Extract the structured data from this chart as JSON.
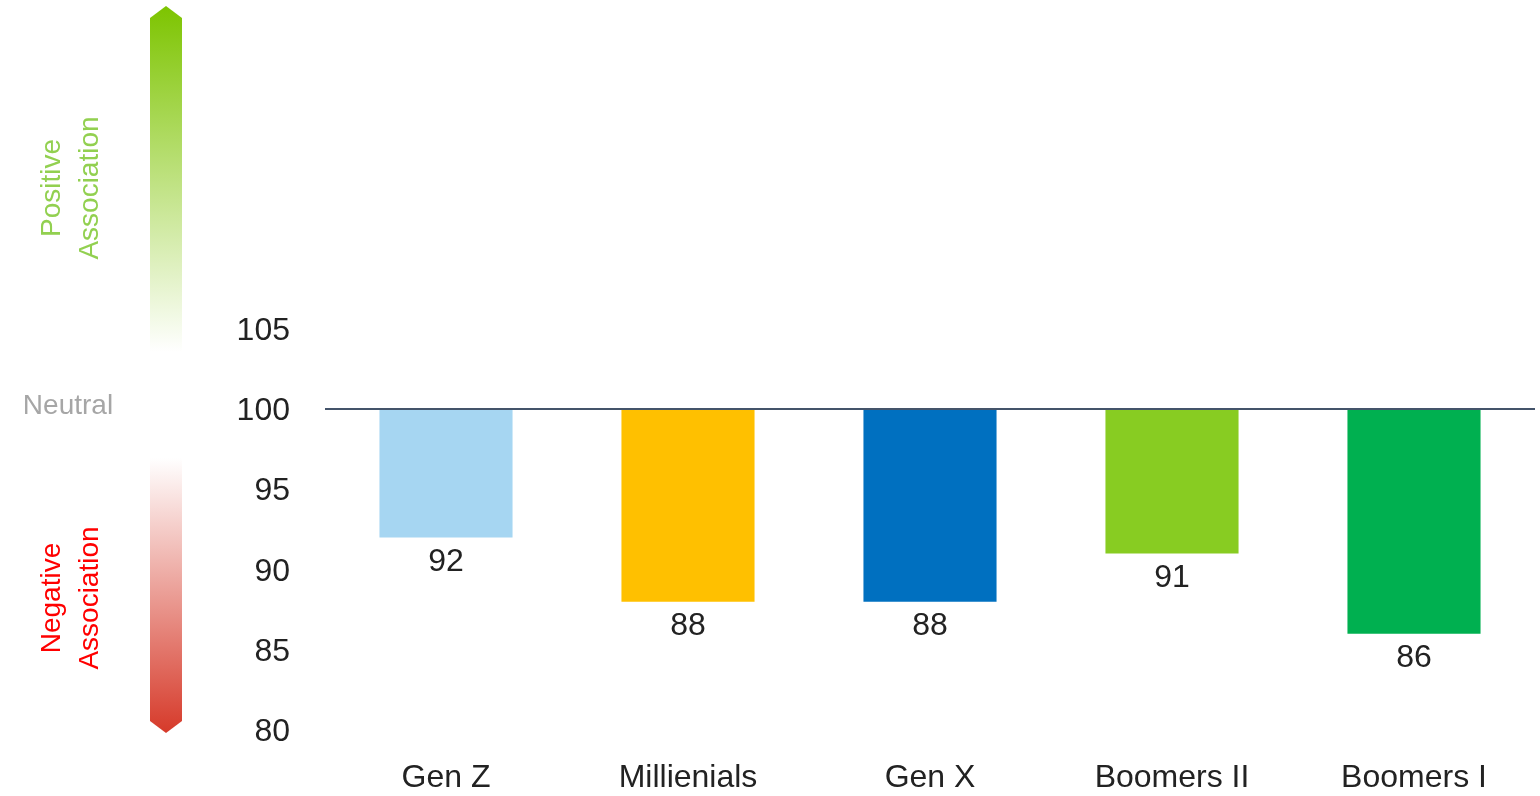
{
  "chart_data": {
    "type": "bar",
    "categories": [
      "Gen Z",
      "Millienials",
      "Gen X",
      "Boomers II",
      "Boomers I"
    ],
    "base": [
      100,
      100,
      100,
      100,
      100
    ],
    "values": [
      -8,
      -12,
      -12,
      -9,
      -14
    ],
    "value_labels": [
      "92",
      "88",
      "88",
      "91",
      "86"
    ],
    "colors": [
      "#a6d6f2",
      "#ffc000",
      "#0070c0",
      "#88cc22",
      "#00b050"
    ],
    "ylim": [
      80,
      105
    ],
    "yticks": [
      80,
      85,
      90,
      95,
      100,
      105
    ],
    "grid": false,
    "ref_lines": [
      {
        "axis": "y",
        "value": 100,
        "color": "#44546a"
      }
    ],
    "annotations": [
      "Positive Association",
      "Neutral",
      "Negative Association"
    ]
  }
}
